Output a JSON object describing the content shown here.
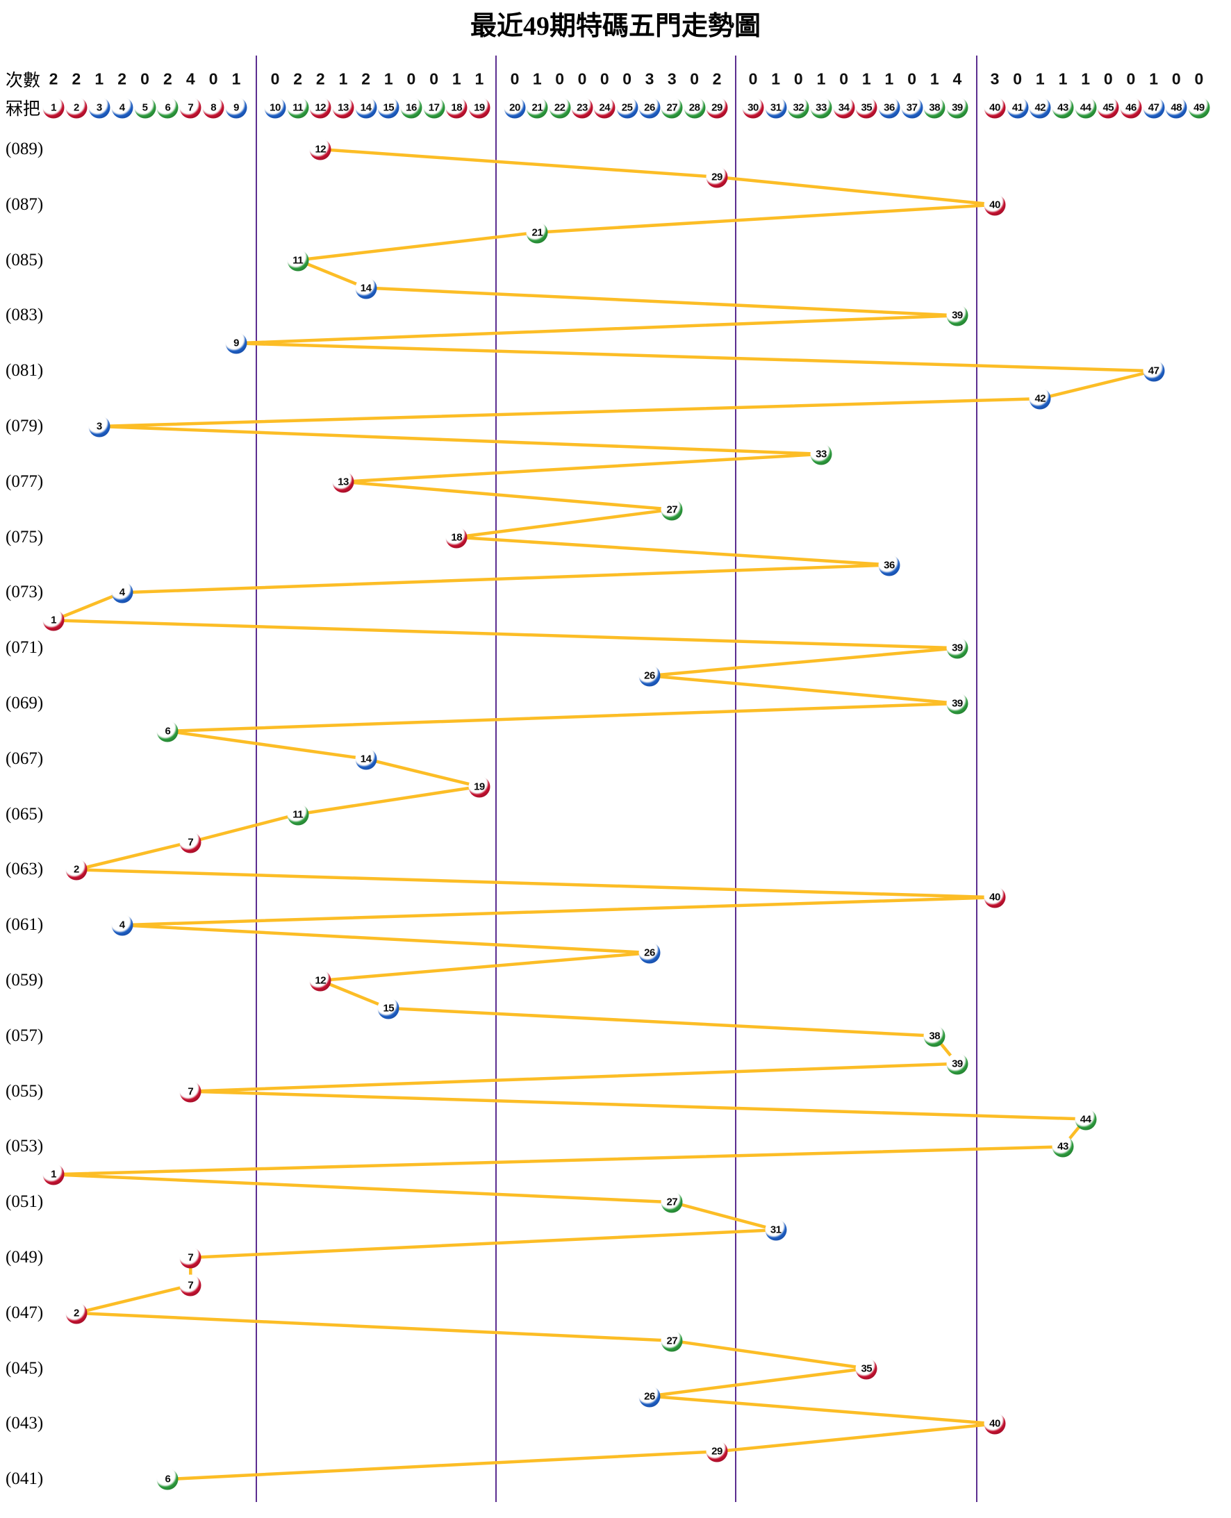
{
  "title": "最近49期特碼五門走勢圖",
  "header": {
    "counts_label": "次數",
    "numbers_label": "冧把"
  },
  "colors": {
    "line": "#FCBD26",
    "divider": "#5B2E90",
    "red": "#C41230",
    "red_dark": "#7E0A20",
    "blue": "#1F5FC2",
    "blue_dark": "#0D3B8F",
    "green": "#2E9B3F",
    "green_dark": "#17641F",
    "ball_face": "#FFFFFF",
    "number_text": "#0A0A0A"
  },
  "ball_color_groups": {
    "red": [
      1,
      2,
      7,
      8,
      12,
      13,
      18,
      19,
      23,
      24,
      29,
      30,
      34,
      35,
      40,
      45,
      46
    ],
    "blue": [
      3,
      4,
      9,
      10,
      14,
      15,
      20,
      25,
      26,
      31,
      36,
      37,
      41,
      42,
      47,
      48
    ],
    "green": [
      5,
      6,
      11,
      16,
      17,
      21,
      22,
      27,
      28,
      32,
      33,
      38,
      39,
      43,
      44,
      49
    ]
  },
  "chart_data": {
    "type": "line",
    "title": "最近49期特碼五門走勢圖",
    "x_numbers": [
      1,
      2,
      3,
      4,
      5,
      6,
      7,
      8,
      9,
      10,
      11,
      12,
      13,
      14,
      15,
      16,
      17,
      18,
      19,
      20,
      21,
      22,
      23,
      24,
      25,
      26,
      27,
      28,
      29,
      30,
      31,
      32,
      33,
      34,
      35,
      36,
      37,
      38,
      39,
      40,
      41,
      42,
      43,
      44,
      45,
      46,
      47,
      48,
      49
    ],
    "counts": [
      2,
      2,
      1,
      2,
      0,
      2,
      4,
      0,
      1,
      0,
      2,
      2,
      1,
      2,
      1,
      0,
      0,
      1,
      1,
      0,
      1,
      0,
      0,
      0,
      0,
      3,
      3,
      0,
      2,
      0,
      1,
      0,
      1,
      0,
      1,
      1,
      0,
      1,
      4,
      3,
      0,
      1,
      1,
      1,
      0,
      0,
      1,
      0,
      0
    ],
    "number_groups": [
      [
        1,
        9
      ],
      [
        10,
        19
      ],
      [
        20,
        29
      ],
      [
        30,
        39
      ],
      [
        40,
        49
      ]
    ],
    "y_tick_labels": [
      "(089)",
      "(087)",
      "(085)",
      "(083)",
      "(081)",
      "(079)",
      "(077)",
      "(075)",
      "(073)",
      "(071)",
      "(069)",
      "(067)",
      "(065)",
      "(063)",
      "(061)",
      "(059)",
      "(057)",
      "(055)",
      "(053)",
      "(051)",
      "(049)",
      "(047)",
      "(045)",
      "(043)",
      "(041)"
    ],
    "rows": [
      {
        "period": 89,
        "number": 12
      },
      {
        "period": 88,
        "number": 29
      },
      {
        "period": 87,
        "number": 40
      },
      {
        "period": 86,
        "number": 21
      },
      {
        "period": 85,
        "number": 11
      },
      {
        "period": 84,
        "number": 14
      },
      {
        "period": 83,
        "number": 39
      },
      {
        "period": 82,
        "number": 9
      },
      {
        "period": 81,
        "number": 47
      },
      {
        "period": 80,
        "number": 42
      },
      {
        "period": 79,
        "number": 3
      },
      {
        "period": 78,
        "number": 33
      },
      {
        "period": 77,
        "number": 13
      },
      {
        "period": 76,
        "number": 27
      },
      {
        "period": 75,
        "number": 18
      },
      {
        "period": 74,
        "number": 36
      },
      {
        "period": 73,
        "number": 4
      },
      {
        "period": 72,
        "number": 1
      },
      {
        "period": 71,
        "number": 39
      },
      {
        "period": 70,
        "number": 26
      },
      {
        "period": 69,
        "number": 39
      },
      {
        "period": 68,
        "number": 6
      },
      {
        "period": 67,
        "number": 14
      },
      {
        "period": 66,
        "number": 19
      },
      {
        "period": 65,
        "number": 11
      },
      {
        "period": 64,
        "number": 7
      },
      {
        "period": 63,
        "number": 2
      },
      {
        "period": 62,
        "number": 40
      },
      {
        "period": 61,
        "number": 4
      },
      {
        "period": 60,
        "number": 26
      },
      {
        "period": 59,
        "number": 12
      },
      {
        "period": 58,
        "number": 15
      },
      {
        "period": 57,
        "number": 38
      },
      {
        "period": 56,
        "number": 39
      },
      {
        "period": 55,
        "number": 7
      },
      {
        "period": 54,
        "number": 44
      },
      {
        "period": 53,
        "number": 43
      },
      {
        "period": 52,
        "number": 1
      },
      {
        "period": 51,
        "number": 27
      },
      {
        "period": 50,
        "number": 31
      },
      {
        "period": 49,
        "number": 7
      },
      {
        "period": 48,
        "number": 7
      },
      {
        "period": 47,
        "number": 2
      },
      {
        "period": 46,
        "number": 27
      },
      {
        "period": 45,
        "number": 35
      },
      {
        "period": 44,
        "number": 26
      },
      {
        "period": 43,
        "number": 40
      },
      {
        "period": 42,
        "number": 29
      },
      {
        "period": 41,
        "number": 6
      }
    ],
    "legend_position": "none",
    "grid": "vertical-group-dividers"
  }
}
